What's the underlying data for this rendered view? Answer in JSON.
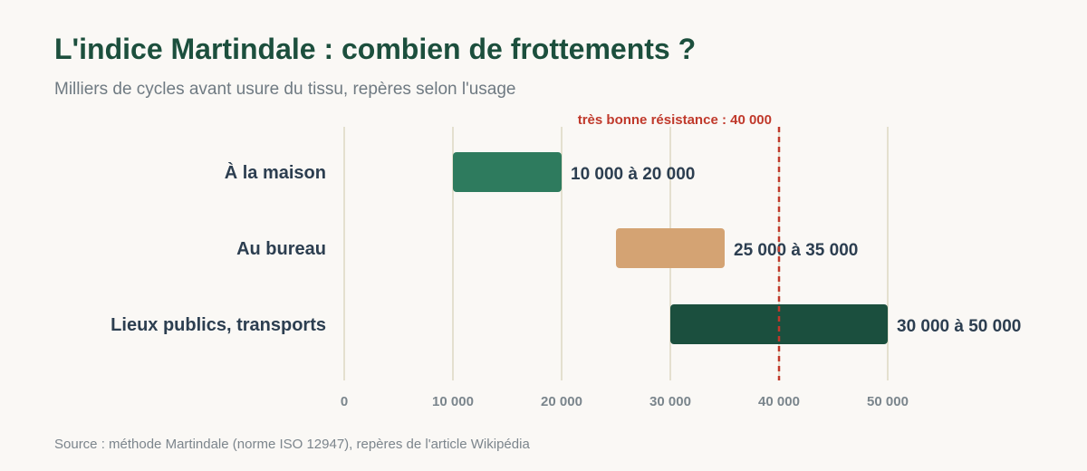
{
  "title": "L'indice Martindale : combien de frottements ?",
  "subtitle": "Milliers de cycles avant usure du tissu, repères selon l'usage",
  "source": "Source : méthode Martindale (norme ISO 12947), repères de l'article Wikipédia",
  "chart_data": {
    "type": "bar",
    "orientation": "horizontal-range",
    "title": "L'indice Martindale : combien de frottements ?",
    "subtitle": "Milliers de cycles avant usure du tissu, repères selon l'usage",
    "xlim": [
      0,
      50000
    ],
    "grid": true,
    "x_ticks": [
      {
        "value": 0,
        "label": "0"
      },
      {
        "value": 10000,
        "label": "10 000"
      },
      {
        "value": 20000,
        "label": "20 000"
      },
      {
        "value": 30000,
        "label": "30 000"
      },
      {
        "value": 40000,
        "label": "40 000"
      },
      {
        "value": 50000,
        "label": "50 000"
      }
    ],
    "categories": [
      "À la maison",
      "Au bureau",
      "Lieux publics, transports"
    ],
    "ranges": [
      {
        "category": "À la maison",
        "start": 10000,
        "end": 20000,
        "label": "10 000 à 20 000",
        "color": "#2e7b5e"
      },
      {
        "category": "Au bureau",
        "start": 25000,
        "end": 35000,
        "label": "25 000 à 35 000",
        "color": "#d4a373"
      },
      {
        "category": "Lieux publics, transports",
        "start": 30000,
        "end": 50000,
        "label": "30 000 à 50 000",
        "color": "#1b4f3e"
      }
    ],
    "reference_line": {
      "value": 40000,
      "label": "très bonne résistance : 40 000",
      "color": "#c0392b"
    }
  }
}
